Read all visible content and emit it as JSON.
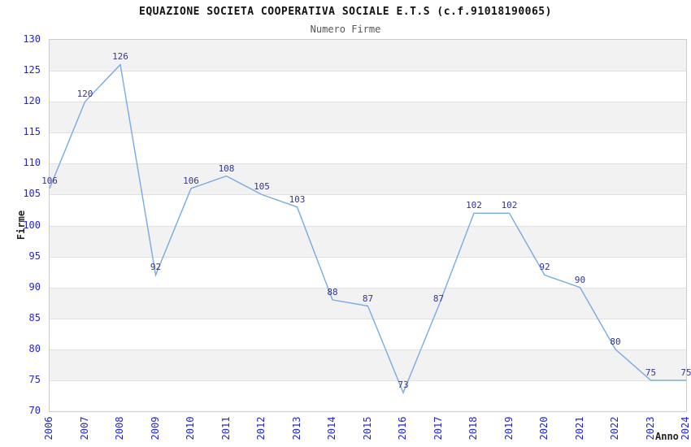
{
  "title": "EQUAZIONE SOCIETA COOPERATIVA SOCIALE E.T.S (c.f.91018190065)",
  "subtitle": "Numero Firme",
  "chart_data": {
    "type": "line",
    "title": "EQUAZIONE SOCIETA COOPERATIVA SOCIALE E.T.S (c.f.91018190065)",
    "subtitle": "Numero Firme",
    "xlabel": "Anno",
    "ylabel": "Firme",
    "x": [
      2006,
      2007,
      2008,
      2009,
      2010,
      2011,
      2012,
      2013,
      2014,
      2015,
      2016,
      2017,
      2018,
      2019,
      2020,
      2021,
      2022,
      2023,
      2024
    ],
    "values": [
      106,
      120,
      126,
      92,
      106,
      108,
      105,
      103,
      88,
      87,
      73,
      87,
      102,
      102,
      92,
      90,
      80,
      75,
      75
    ],
    "ylim": [
      70,
      130
    ],
    "ytick_step": 5,
    "yticks": [
      70,
      75,
      80,
      85,
      90,
      95,
      100,
      105,
      110,
      115,
      120,
      125,
      130
    ],
    "grid": true,
    "legend_position": "none",
    "colors": {
      "line": "#76abe3",
      "band_fill": "#f2f2f2",
      "band_alt_fill": "#ffffff",
      "gridline": "#e1e1e1",
      "plot_border": "#cccccc",
      "tick_label": "#2424cc",
      "data_label": "#34348c",
      "title": "#111111",
      "subtitle": "#555555",
      "axis_title": "#222222"
    }
  }
}
